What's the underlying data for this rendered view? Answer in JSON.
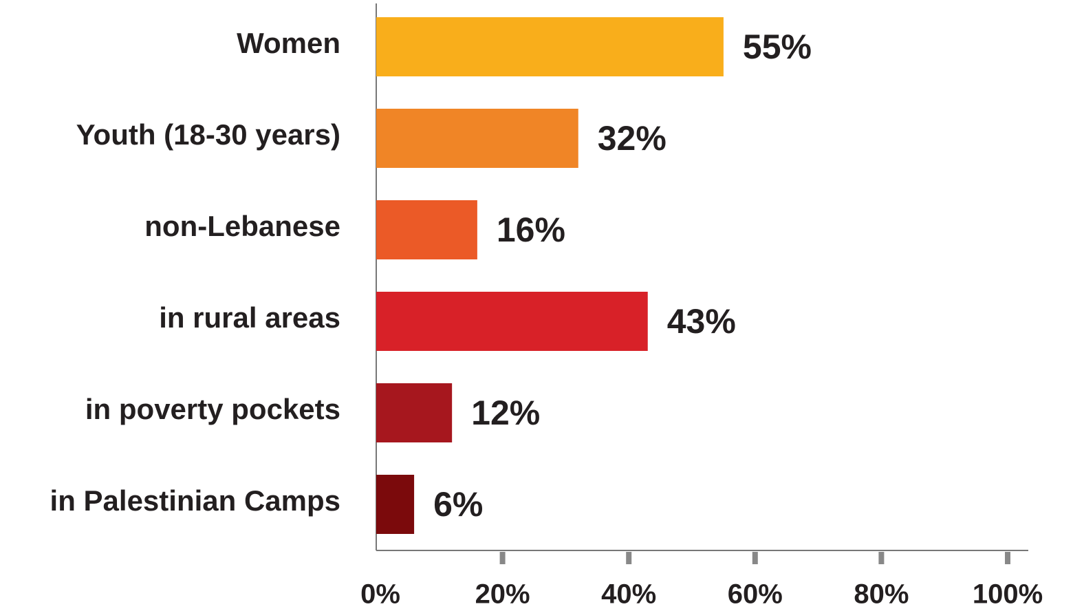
{
  "chart_data": {
    "type": "hbar",
    "categories": [
      "Women",
      "Youth (18-30 years)",
      "non-Lebanese",
      "in rural areas",
      "in poverty pockets",
      "in Palestinian Camps"
    ],
    "values": [
      55,
      32,
      16,
      43,
      12,
      6
    ],
    "value_labels": [
      "55%",
      "32%",
      "16%",
      "43%",
      "12%",
      "6%"
    ],
    "colors": [
      "#f9ae1b",
      "#f08526",
      "#eb5a27",
      "#d82128",
      "#a6171e",
      "#7b0a0c"
    ],
    "xlim": [
      0,
      100
    ],
    "xticks": [
      {
        "value": 0,
        "label": "0%"
      },
      {
        "value": 20,
        "label": "20%"
      },
      {
        "value": 40,
        "label": "40%"
      },
      {
        "value": 60,
        "label": "60%"
      },
      {
        "value": 80,
        "label": "80%"
      },
      {
        "value": 100,
        "label": "100%"
      }
    ]
  }
}
